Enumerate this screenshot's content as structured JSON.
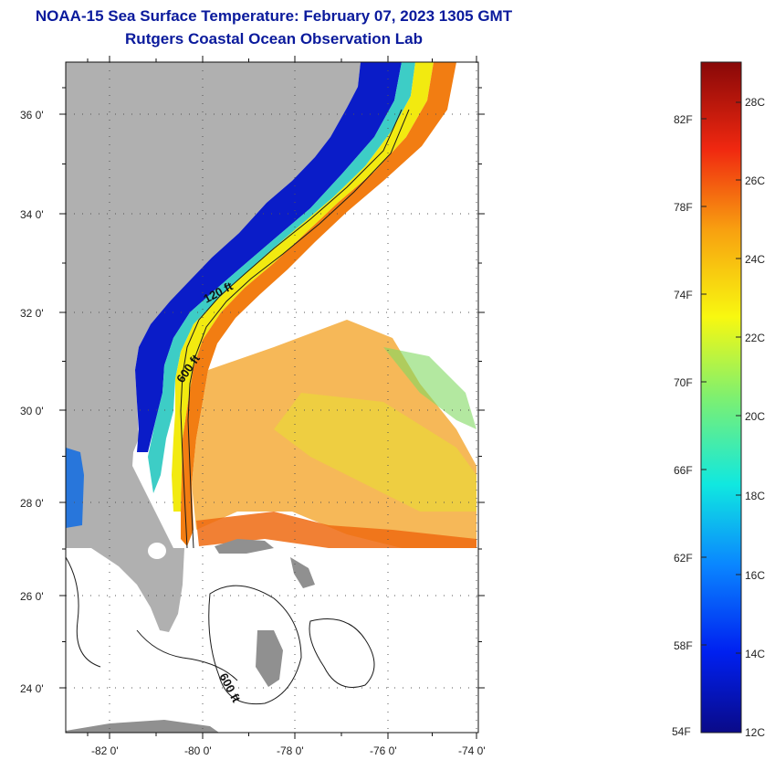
{
  "header": {
    "title": "NOAA-15 Sea Surface Temperature:  February 07, 2023 1305 GMT",
    "subtitle": "Rutgers Coastal Ocean Observation Lab"
  },
  "map": {
    "lat_labels": [
      "36 0'",
      "34 0'",
      "32 0'",
      "30 0'",
      "28 0'",
      "26 0'",
      "24 0'"
    ],
    "lon_labels": [
      "-82 0'",
      "-80 0'",
      "-78 0'",
      "-76 0'",
      "-74 0'"
    ],
    "contour_labels": [
      "120 ft",
      "600 ft",
      "600 ft"
    ],
    "colors": {
      "land": "#b0b0b0",
      "cold": "#0010c8",
      "warm": "#f08010",
      "no_data": "#ffffff"
    }
  },
  "colorbar": {
    "fahrenheit": [
      "82F",
      "78F",
      "74F",
      "70F",
      "66F",
      "62F",
      "58F",
      "54F"
    ],
    "celsius": [
      "28C",
      "26C",
      "24C",
      "22C",
      "20C",
      "18C",
      "16C",
      "14C",
      "12C"
    ]
  }
}
